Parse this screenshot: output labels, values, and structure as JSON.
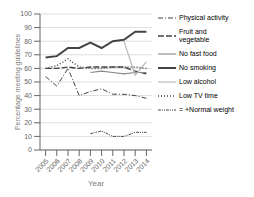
{
  "chart_data": {
    "type": "line",
    "xlabel": "Year",
    "ylabel": "Percentage meeting guidelines",
    "x": [
      2005,
      2006,
      2007,
      2008,
      2009,
      2010,
      2011,
      2012,
      2013,
      2014
    ],
    "xlim": [
      2004.5,
      2014.5
    ],
    "xticks": [
      2005,
      2006,
      2007,
      2008,
      2009,
      2010,
      2011,
      2012,
      2013,
      2014
    ],
    "ylim": [
      0,
      100
    ],
    "yticks": [
      0,
      10,
      20,
      30,
      40,
      50,
      60,
      70,
      80,
      90,
      100
    ],
    "grid": true,
    "legend": "right",
    "series": [
      {
        "name": "Physical activity",
        "color": "#444444",
        "line_style": "dashdot",
        "values": [
          54,
          47,
          60,
          40,
          43,
          45,
          41,
          41,
          40,
          38
        ]
      },
      {
        "name": "Fruit and\nvegetable",
        "color": "#444444",
        "line_style": "dashed",
        "values": [
          60,
          60,
          61,
          60,
          61,
          61,
          61,
          61,
          58,
          56
        ]
      },
      {
        "name": "No fast food",
        "color": "#888888",
        "line_style": "solid",
        "values": [
          null,
          null,
          null,
          null,
          57,
          58,
          57,
          56,
          57,
          57
        ]
      },
      {
        "name": "No smoking",
        "color": "#444444",
        "line_style": "solid",
        "values": [
          68,
          69,
          75,
          75,
          79,
          75,
          80,
          81,
          87,
          87
        ]
      },
      {
        "name": "Low alcohol",
        "color": "#bbbbbb",
        "line_style": "solid",
        "values": [
          null,
          null,
          null,
          null,
          null,
          null,
          null,
          80,
          55,
          65
        ]
      },
      {
        "name": "Low TV time",
        "color": "#444444",
        "line_style": "dotted",
        "values": [
          60,
          62,
          67,
          61,
          60,
          60,
          61,
          61,
          61,
          60
        ]
      },
      {
        "name": "= +Normal weight",
        "color": "#444444",
        "line_style": "dashdotdot",
        "values": [
          null,
          null,
          null,
          null,
          12,
          14,
          10,
          10,
          13,
          13
        ]
      }
    ]
  }
}
